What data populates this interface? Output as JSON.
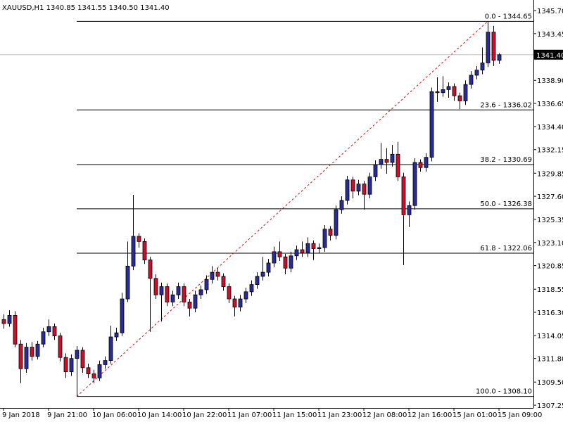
{
  "chart_data": {
    "type": "candlestick",
    "title": "XAUUSD,H1  1340.85 1341.55 1340.50 1341.40",
    "categories": [
      "9 Jan 2018",
      null,
      null,
      null,
      null,
      null,
      null,
      null,
      "9 Jan 21:00",
      null,
      null,
      null,
      null,
      null,
      null,
      null,
      "10 Jan 06:00",
      null,
      null,
      null,
      null,
      null,
      null,
      null,
      "10 Jan 14:00",
      null,
      null,
      null,
      null,
      null,
      null,
      null,
      "10 Jan 22:00",
      null,
      null,
      null,
      null,
      null,
      null,
      null,
      "11 Jan 07:00",
      null,
      null,
      null,
      null,
      null,
      null,
      null,
      "11 Jan 15:00",
      null,
      null,
      null,
      null,
      null,
      null,
      null,
      "11 Jan 23:00",
      null,
      null,
      null,
      null,
      null,
      null,
      null,
      "12 Jan 08:00",
      null,
      null,
      null,
      null,
      null,
      null,
      null,
      "12 Jan 16:00",
      null,
      null,
      null,
      null,
      null,
      null,
      null,
      "15 Jan 01:00",
      null,
      null,
      null,
      null,
      null,
      null,
      null,
      "15 Jan 09:00"
    ],
    "open": [
      1315.6,
      1315.2,
      1316.0,
      1313.2,
      1310.8,
      1312.9,
      1312.0,
      1313.2,
      1314.4,
      1314.9,
      1314.0,
      1311.9,
      1310.5,
      1311.8,
      1312.6,
      1310.9,
      1310.3,
      1309.9,
      1311.2,
      1311.6,
      1313.9,
      1314.3,
      1317.6,
      1320.8,
      1323.7,
      1323.2,
      1321.4,
      1319.6,
      1318.0,
      1318.8,
      1317.3,
      1318.0,
      1318.8,
      1317.3,
      1316.7,
      1318.0,
      1318.5,
      1319.5,
      1320.2,
      1319.8,
      1318.8,
      1317.6,
      1316.8,
      1317.6,
      1318.3,
      1319.0,
      1319.8,
      1320.2,
      1321.1,
      1322.2,
      1321.7,
      1320.6,
      1321.8,
      1322.4,
      1322.1,
      1323.0,
      1322.5,
      1322.6,
      1324.4,
      1323.8,
      1326.3,
      1327.2,
      1329.2,
      1328.1,
      1328.8,
      1327.8,
      1329.5,
      1330.7,
      1331.2,
      1330.9,
      1331.7,
      1329.5,
      1325.8,
      1326.7,
      1330.9,
      1330.4,
      1331.4,
      1337.8,
      1337.7,
      1338.0,
      1338.3,
      1337.4,
      1336.9,
      1338.5,
      1339.4,
      1339.9,
      1340.6,
      1343.6,
      1340.85
    ],
    "high": [
      1316.1,
      1316.5,
      1316.4,
      1313.6,
      1313.3,
      1313.4,
      1313.5,
      1314.8,
      1315.6,
      1315.2,
      1314.3,
      1312.3,
      1312.2,
      1313.0,
      1312.9,
      1311.3,
      1310.7,
      1311.6,
      1312.0,
      1315.0,
      1314.8,
      1318.2,
      1323.2,
      1327.75,
      1324.0,
      1323.5,
      1321.7,
      1320.0,
      1319.2,
      1319.1,
      1318.4,
      1319.2,
      1319.1,
      1317.6,
      1318.4,
      1318.9,
      1319.9,
      1320.8,
      1320.6,
      1320.1,
      1319.1,
      1317.9,
      1318.0,
      1318.7,
      1319.4,
      1320.2,
      1321.7,
      1321.5,
      1322.7,
      1323.2,
      1322.0,
      1322.2,
      1322.8,
      1323.2,
      1323.6,
      1323.3,
      1323.0,
      1324.8,
      1324.7,
      1326.7,
      1327.6,
      1329.6,
      1329.5,
      1329.2,
      1329.1,
      1329.9,
      1331.1,
      1332.8,
      1332.3,
      1332.6,
      1332.9,
      1329.9,
      1327.1,
      1331.3,
      1331.2,
      1331.8,
      1338.2,
      1339.2,
      1339.3,
      1338.7,
      1338.6,
      1337.7,
      1338.9,
      1339.8,
      1340.3,
      1342.1,
      1344.65,
      1344.2,
      1341.55
    ],
    "low": [
      1314.7,
      1314.9,
      1312.9,
      1309.4,
      1310.4,
      1311.6,
      1311.7,
      1312.9,
      1314.0,
      1313.6,
      1311.5,
      1309.9,
      1310.1,
      1308.1,
      1310.4,
      1309.9,
      1309.4,
      1309.6,
      1310.8,
      1311.3,
      1313.5,
      1314.0,
      1317.3,
      1320.4,
      1322.6,
      1321.0,
      1314.4,
      1317.6,
      1315.4,
      1316.9,
      1316.9,
      1317.6,
      1316.9,
      1315.9,
      1316.3,
      1317.6,
      1318.1,
      1319.1,
      1319.4,
      1318.4,
      1317.2,
      1315.9,
      1316.4,
      1317.2,
      1317.9,
      1318.6,
      1319.4,
      1319.8,
      1320.7,
      1321.3,
      1320.0,
      1320.2,
      1321.4,
      1321.7,
      1321.7,
      1321.4,
      1322.1,
      1322.2,
      1323.3,
      1323.4,
      1325.9,
      1326.8,
      1327.4,
      1327.7,
      1326.3,
      1327.4,
      1329.1,
      1330.3,
      1329.8,
      1330.5,
      1329.1,
      1320.9,
      1324.6,
      1326.3,
      1330.0,
      1330.0,
      1331.0,
      1336.8,
      1337.3,
      1337.2,
      1336.9,
      1336.1,
      1336.5,
      1338.1,
      1339.0,
      1339.5,
      1340.2,
      1340.3,
      1340.5
    ],
    "close": [
      1315.2,
      1316.0,
      1313.2,
      1310.8,
      1312.9,
      1312.0,
      1313.2,
      1314.4,
      1314.9,
      1314.0,
      1311.9,
      1310.5,
      1311.8,
      1312.6,
      1310.9,
      1310.3,
      1309.9,
      1311.2,
      1311.6,
      1313.9,
      1314.3,
      1317.6,
      1320.8,
      1323.7,
      1323.2,
      1321.4,
      1319.6,
      1318.0,
      1318.8,
      1317.3,
      1318.0,
      1318.8,
      1317.3,
      1316.7,
      1318.0,
      1318.5,
      1319.5,
      1320.2,
      1319.8,
      1318.8,
      1317.6,
      1316.8,
      1317.6,
      1318.3,
      1319.0,
      1319.8,
      1320.2,
      1321.1,
      1322.2,
      1321.7,
      1320.6,
      1321.8,
      1322.4,
      1322.1,
      1323.0,
      1322.5,
      1322.6,
      1324.4,
      1323.8,
      1326.3,
      1327.2,
      1329.2,
      1328.1,
      1328.8,
      1327.8,
      1329.5,
      1330.7,
      1331.2,
      1330.9,
      1331.7,
      1329.5,
      1325.8,
      1326.7,
      1330.9,
      1330.4,
      1331.4,
      1337.8,
      1337.7,
      1338.0,
      1338.3,
      1337.4,
      1336.9,
      1338.5,
      1339.4,
      1339.9,
      1340.6,
      1343.6,
      1340.85,
      1341.4
    ],
    "up_color": "#2b2b96",
    "down_color": "#c8102e",
    "ylim": [
      1306.98,
      1346.73
    ],
    "yticks": [
      {
        "value": 1345.7,
        "label": "1345.70"
      },
      {
        "value": 1343.45,
        "label": "1343.45"
      },
      {
        "value": 1338.9,
        "label": "1338.90"
      },
      {
        "value": 1336.65,
        "label": "1336.65"
      },
      {
        "value": 1334.4,
        "label": "1334.40"
      },
      {
        "value": 1332.15,
        "label": "1332.15"
      },
      {
        "value": 1329.85,
        "label": "1329.85"
      },
      {
        "value": 1327.6,
        "label": "1327.60"
      },
      {
        "value": 1325.35,
        "label": "1325.35"
      },
      {
        "value": 1323.1,
        "label": "1323.10"
      },
      {
        "value": 1320.85,
        "label": "1320.85"
      },
      {
        "value": 1318.55,
        "label": "1318.55"
      },
      {
        "value": 1316.3,
        "label": "1316.30"
      },
      {
        "value": 1314.05,
        "label": "1314.05"
      },
      {
        "value": 1311.8,
        "label": "1311.80"
      },
      {
        "value": 1309.5,
        "label": "1309.50"
      },
      {
        "value": 1307.25,
        "label": "1307.25"
      }
    ],
    "current_price": {
      "value": 1341.4,
      "label": "1341.40"
    },
    "fib_levels": [
      {
        "value": 1344.65,
        "label": "0.0 - 1344.65"
      },
      {
        "value": 1336.02,
        "label": "23.6 - 1336.02"
      },
      {
        "value": 1330.69,
        "label": "38.2 - 1330.69"
      },
      {
        "value": 1326.38,
        "label": "50.0 - 1326.38"
      },
      {
        "value": 1322.06,
        "label": "61.8 - 1322.06"
      },
      {
        "value": 1308.1,
        "label": "100.0 - 1308.10"
      }
    ],
    "fib_color": "#000000",
    "trend_color": "#d01010"
  }
}
